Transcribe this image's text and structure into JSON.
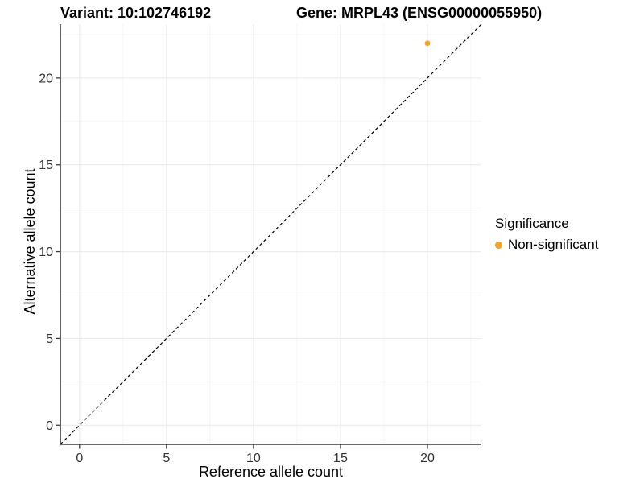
{
  "title": {
    "variant": "Variant: 10:102746192",
    "gene": "Gene: MRPL43 (ENSG00000055950)"
  },
  "axes": {
    "x_label": "Reference allele count",
    "y_label": "Alternative allele count"
  },
  "legend": {
    "title": "Significance",
    "position": "right",
    "items": [
      {
        "label": "Non-significant",
        "color": "#F9A125",
        "marker": "circle"
      }
    ]
  },
  "style": {
    "background": "#ffffff",
    "major_grid_color": "#e9e9e9",
    "minor_grid_color": "#f5f5f5",
    "axis_line_color": "#3a3a3a",
    "tick_color": "#3a3a3a",
    "tick_label_color": "#333333",
    "reference_line_color": "#000000",
    "point_color": "#F9A125"
  },
  "chart_data": {
    "type": "scatter",
    "title": "Variant: 10:102746192   Gene: MRPL43 (ENSG00000055950)",
    "xlabel": "Reference allele count",
    "ylabel": "Alternative allele count",
    "xlim": [
      -1.1,
      23.1
    ],
    "ylim": [
      -1.1,
      23.1
    ],
    "xticks": [
      0,
      5,
      10,
      15,
      20
    ],
    "yticks": [
      0,
      5,
      10,
      15,
      20
    ],
    "minor_xticks": [
      2.5,
      7.5,
      12.5,
      17.5,
      22.5
    ],
    "minor_yticks": [
      2.5,
      7.5,
      12.5,
      17.5,
      22.5
    ],
    "grid": "major+minor",
    "legend_position": "right",
    "reference_line": {
      "type": "identity",
      "slope": 1,
      "intercept": 0,
      "style": "dashed",
      "color": "#000000"
    },
    "series": [
      {
        "name": "Non-significant",
        "color": "#F9A125",
        "points": [
          {
            "x": 20,
            "y": 22
          }
        ]
      }
    ]
  }
}
